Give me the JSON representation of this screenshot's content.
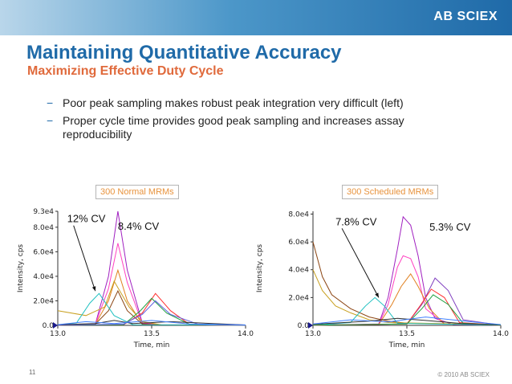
{
  "header": {
    "logo_text": "AB SCIEX"
  },
  "title": "Maintaining Quantitative Accuracy",
  "subtitle": "Maximizing Effective Duty Cycle",
  "bullets": [
    "Poor peak sampling makes robust peak integration very difficult (left)",
    "Proper cycle time provides good peak sampling and increases assay reproducibility"
  ],
  "bullet_marker": "−",
  "footer": {
    "page_number": "11",
    "copyright": "© 2010 AB SCIEX"
  },
  "colors": {
    "header_start": "#b9d6ea",
    "header_end": "#1f6aa8",
    "title": "#1f6aa8",
    "subtitle": "#e06a3c",
    "box_label": "#e8933d"
  },
  "chart_data": [
    {
      "type": "line",
      "box_label": "300 Normal MRMs",
      "xlabel": "Time, min",
      "ylabel": "Intensity, cps",
      "x_ticks": [
        13.0,
        13.5,
        14.0
      ],
      "x_tick_labels": [
        "13.0",
        "13.5",
        "14.0"
      ],
      "y_tick_labels": [
        "0.0",
        "2.0e4",
        "4.0e4",
        "6.0e4",
        "8.0e4",
        "9.3e4"
      ],
      "y_ticks": [
        0,
        20000,
        40000,
        60000,
        80000,
        93000
      ],
      "xlim": [
        13.0,
        14.0
      ],
      "ylim": [
        0,
        93000
      ],
      "annotations": [
        {
          "text": "12% CV",
          "x": 13.05,
          "y": 84000,
          "arrow_to": [
            13.2,
            28000
          ]
        },
        {
          "text": "8.4% CV",
          "x": 13.32,
          "y": 78000
        }
      ],
      "series": [
        {
          "color": "#a020c0",
          "x": [
            13.0,
            13.2,
            13.27,
            13.32,
            13.37,
            13.45,
            13.55,
            14.0
          ],
          "y": [
            200,
            1000,
            40000,
            93000,
            45000,
            2000,
            500,
            200
          ]
        },
        {
          "color": "#ff40c0",
          "x": [
            13.0,
            13.2,
            13.27,
            13.32,
            13.37,
            13.45,
            13.55,
            14.0
          ],
          "y": [
            200,
            1000,
            30000,
            67000,
            35000,
            1500,
            400,
            200
          ]
        },
        {
          "color": "#e08020",
          "x": [
            13.0,
            13.2,
            13.27,
            13.32,
            13.37,
            13.45,
            13.55,
            14.0
          ],
          "y": [
            200,
            1000,
            20000,
            45000,
            20000,
            1000,
            400,
            200
          ]
        },
        {
          "color": "#c8a020",
          "x": [
            13.0,
            13.15,
            13.25,
            13.3,
            13.38,
            13.45,
            13.55,
            14.0
          ],
          "y": [
            12000,
            8000,
            15000,
            36000,
            15000,
            3000,
            500,
            200
          ]
        },
        {
          "color": "#8b4513",
          "x": [
            13.0,
            13.2,
            13.27,
            13.32,
            13.37,
            13.45,
            13.55,
            14.0
          ],
          "y": [
            300,
            1000,
            12000,
            28000,
            12000,
            1000,
            300,
            200
          ]
        },
        {
          "color": "#20c0c0",
          "x": [
            13.0,
            13.1,
            13.17,
            13.22,
            13.3,
            13.4,
            14.0
          ],
          "y": [
            200,
            2000,
            18000,
            26000,
            8000,
            500,
            200
          ]
        },
        {
          "color": "#ff3030",
          "x": [
            13.0,
            13.35,
            13.45,
            13.52,
            13.6,
            13.7,
            14.0
          ],
          "y": [
            200,
            500,
            10000,
            26000,
            12000,
            1000,
            200
          ]
        },
        {
          "color": "#20a040",
          "x": [
            13.0,
            13.35,
            13.44,
            13.5,
            13.58,
            13.7,
            14.0
          ],
          "y": [
            200,
            500,
            12000,
            22000,
            10000,
            1000,
            200
          ]
        },
        {
          "color": "#6060e0",
          "x": [
            13.0,
            13.35,
            13.45,
            13.52,
            13.6,
            13.75,
            14.0
          ],
          "y": [
            200,
            1000,
            9000,
            20000,
            9000,
            800,
            200
          ]
        },
        {
          "color": "#303030",
          "x": [
            13.0,
            13.2,
            13.3,
            13.4,
            13.6,
            14.0
          ],
          "y": [
            500,
            1500,
            4000,
            1500,
            3000,
            300
          ]
        },
        {
          "color": "#4080ff",
          "x": [
            13.0,
            13.15,
            13.3,
            13.5,
            13.7,
            14.0
          ],
          "y": [
            600,
            3000,
            1500,
            4000,
            1200,
            300
          ]
        }
      ]
    },
    {
      "type": "line",
      "box_label": "300 Scheduled MRMs",
      "xlabel": "Time, min",
      "ylabel": "Intensity, cps",
      "x_ticks": [
        13.0,
        13.5,
        14.0
      ],
      "x_tick_labels": [
        "13.0",
        "13.5",
        "14.0"
      ],
      "y_tick_labels": [
        "0.0",
        "2.0e4",
        "4.0e4",
        "6.0e4",
        "8.0e4"
      ],
      "y_ticks": [
        0,
        20000,
        40000,
        60000,
        80000
      ],
      "xlim": [
        13.0,
        14.0
      ],
      "ylim": [
        0,
        82000
      ],
      "annotations": [
        {
          "text": "7.8% CV",
          "x": 13.12,
          "y": 72000,
          "arrow_to": [
            13.35,
            20000
          ]
        },
        {
          "text": "5.3% CV",
          "x": 13.62,
          "y": 68000
        }
      ],
      "series": [
        {
          "color": "#a020c0",
          "x": [
            13.0,
            13.35,
            13.4,
            13.45,
            13.48,
            13.52,
            13.56,
            13.6,
            13.65,
            13.75,
            14.0
          ],
          "y": [
            200,
            1000,
            20000,
            55000,
            78000,
            72000,
            50000,
            20000,
            5000,
            500,
            200
          ]
        },
        {
          "color": "#ff40c0",
          "x": [
            13.0,
            13.35,
            13.4,
            13.45,
            13.48,
            13.52,
            13.56,
            13.6,
            13.7,
            14.0
          ],
          "y": [
            200,
            800,
            15000,
            42000,
            50000,
            48000,
            35000,
            12000,
            1000,
            200
          ]
        },
        {
          "color": "#e08020",
          "x": [
            13.0,
            13.35,
            13.42,
            13.47,
            13.52,
            13.56,
            13.62,
            13.7,
            14.0
          ],
          "y": [
            200,
            600,
            15000,
            28000,
            37000,
            28000,
            12000,
            1000,
            200
          ]
        },
        {
          "color": "#8b4513",
          "x": [
            13.0,
            13.05,
            13.1,
            13.2,
            13.3,
            13.4,
            13.5,
            14.0
          ],
          "y": [
            60000,
            35000,
            22000,
            12000,
            6000,
            3000,
            1500,
            500
          ]
        },
        {
          "color": "#c8a020",
          "x": [
            13.0,
            13.05,
            13.12,
            13.2,
            13.3,
            13.4,
            14.0
          ],
          "y": [
            40000,
            25000,
            14000,
            9000,
            4000,
            2000,
            500
          ]
        },
        {
          "color": "#20c0c0",
          "x": [
            13.0,
            13.2,
            13.28,
            13.33,
            13.38,
            13.45,
            14.0
          ],
          "y": [
            200,
            2000,
            14000,
            20000,
            14000,
            1500,
            200
          ]
        },
        {
          "color": "#8040c0",
          "x": [
            13.0,
            13.5,
            13.58,
            13.65,
            13.72,
            13.8,
            14.0
          ],
          "y": [
            200,
            1000,
            15000,
            34000,
            25000,
            4000,
            200
          ]
        },
        {
          "color": "#ff3030",
          "x": [
            13.0,
            13.5,
            13.57,
            13.63,
            13.7,
            13.78,
            14.0
          ],
          "y": [
            200,
            1000,
            14000,
            26000,
            20000,
            2000,
            200
          ]
        },
        {
          "color": "#20a040",
          "x": [
            13.0,
            13.5,
            13.58,
            13.64,
            13.72,
            13.8,
            14.0
          ],
          "y": [
            200,
            1000,
            12000,
            22000,
            15000,
            1500,
            200
          ]
        },
        {
          "color": "#303030",
          "x": [
            13.0,
            13.3,
            13.45,
            13.6,
            13.8,
            14.0
          ],
          "y": [
            800,
            3000,
            5000,
            3500,
            1200,
            400
          ]
        },
        {
          "color": "#4080ff",
          "x": [
            13.0,
            13.2,
            13.4,
            13.6,
            13.85,
            14.0
          ],
          "y": [
            1000,
            4000,
            2500,
            6000,
            2500,
            600
          ]
        }
      ]
    }
  ]
}
